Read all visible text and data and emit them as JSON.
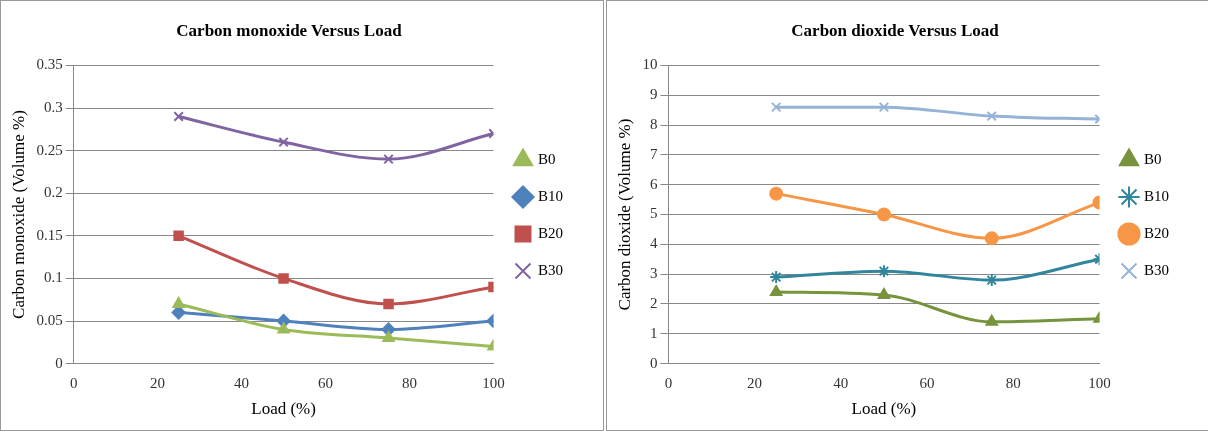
{
  "chart_data": [
    {
      "type": "line",
      "title": "Carbon monoxide Versus Load",
      "xlabel": "Load (%)",
      "ylabel": "Carbon monoxide (Volume %)",
      "x": [
        25,
        50,
        75,
        100
      ],
      "xlim": [
        0,
        100
      ],
      "xticks": [
        0,
        20,
        40,
        60,
        80,
        100
      ],
      "ylim": [
        0,
        0.35
      ],
      "yticks": [
        0,
        0.05,
        0.1,
        0.15,
        0.2,
        0.25,
        0.3,
        0.35
      ],
      "grid": "y",
      "legend": "right",
      "series": [
        {
          "name": "B0",
          "color": "#9bbb59",
          "marker": "triangle",
          "values": [
            0.07,
            0.04,
            0.03,
            0.02
          ]
        },
        {
          "name": "B10",
          "color": "#4f81bd",
          "marker": "diamond",
          "values": [
            0.06,
            0.05,
            0.04,
            0.05
          ]
        },
        {
          "name": "B20",
          "color": "#c0504d",
          "marker": "square",
          "values": [
            0.15,
            0.1,
            0.07,
            0.09
          ]
        },
        {
          "name": "B30",
          "color": "#8064a2",
          "marker": "cross",
          "values": [
            0.29,
            0.26,
            0.24,
            0.27
          ]
        }
      ]
    },
    {
      "type": "line",
      "title": "Carbon dioxide Versus Load",
      "xlabel": "Load (%)",
      "ylabel": "Carbon dioxide (Volume %)",
      "x": [
        25,
        50,
        75,
        100
      ],
      "xlim": [
        0,
        100
      ],
      "xticks": [
        0,
        20,
        40,
        60,
        80,
        100
      ],
      "ylim": [
        0,
        10
      ],
      "yticks": [
        0,
        1,
        2,
        3,
        4,
        5,
        6,
        7,
        8,
        9,
        10
      ],
      "grid": "y",
      "legend": "right",
      "series": [
        {
          "name": "B0",
          "color": "#77933c",
          "marker": "triangle",
          "values": [
            2.4,
            2.3,
            1.4,
            1.5
          ]
        },
        {
          "name": "B10",
          "color": "#31859c",
          "marker": "cross",
          "values": [
            2.9,
            3.1,
            2.8,
            3.5
          ]
        },
        {
          "name": "B20",
          "color": "#f79646",
          "marker": "circle",
          "values": [
            5.7,
            5.0,
            4.2,
            5.4
          ]
        },
        {
          "name": "B30",
          "color": "#95b3d7",
          "marker": "cross",
          "values": [
            8.6,
            8.6,
            8.3,
            8.2
          ]
        }
      ]
    }
  ]
}
